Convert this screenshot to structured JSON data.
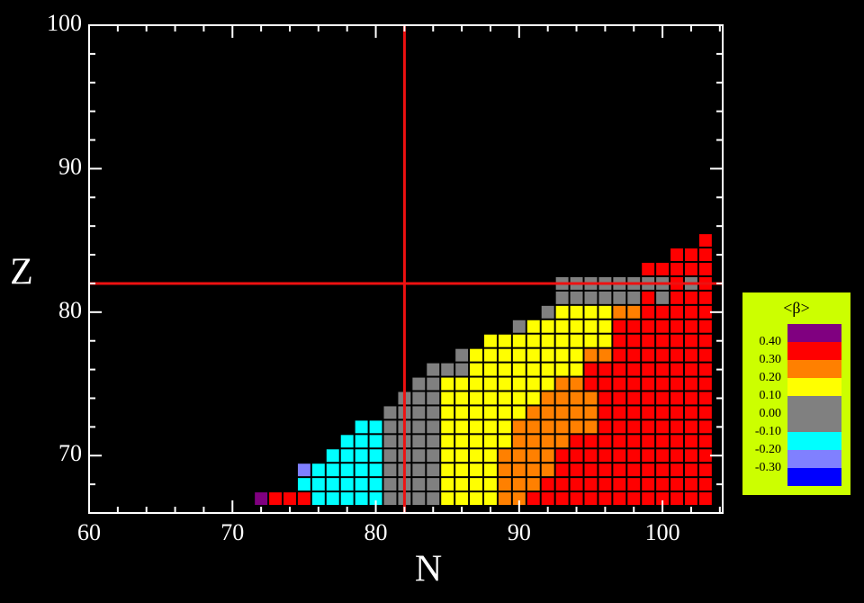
{
  "chart_data": {
    "type": "cellmap",
    "xlabel": "N",
    "ylabel": "Z",
    "xlim": [
      60,
      104.2
    ],
    "ylim": [
      66,
      100
    ],
    "xticks": [
      60,
      70,
      80,
      90,
      100
    ],
    "yticks": [
      70,
      80,
      90,
      100
    ],
    "xminorticks": [
      62,
      64,
      66,
      68,
      72,
      74,
      76,
      78,
      82,
      84,
      86,
      88,
      92,
      94,
      96,
      98,
      102,
      104
    ],
    "yminorticks": [
      66,
      68,
      72,
      74,
      76,
      78,
      82,
      84,
      86,
      88,
      92,
      94,
      96,
      98
    ],
    "reference_lines": [
      {
        "axis": "x",
        "value": 82,
        "color": "#ee1111"
      },
      {
        "axis": "y",
        "value": 82,
        "color": "#ee1111"
      }
    ],
    "legend": {
      "title": "<β>",
      "background": "#ccff00",
      "colors": [
        "#800080",
        "#ff0000",
        "#ff8000",
        "#ffff00",
        "#808080",
        "#00ffff",
        "#8080ff",
        "#0000ff"
      ],
      "labels": [
        {
          "value": 0.4,
          "label": "0.40"
        },
        {
          "value": 0.3,
          "label": "0.30"
        },
        {
          "value": 0.2,
          "label": "0.20"
        },
        {
          "value": 0.1,
          "label": "0.10"
        },
        {
          "value": 0,
          "label": "0.00"
        },
        {
          "value": -0.1,
          "label": "-0.10"
        },
        {
          "value": -0.2,
          "label": "-0.20"
        },
        {
          "value": -0.3,
          "label": "-0.30"
        }
      ]
    },
    "cells": [
      [
        72,
        67,
        0
      ],
      [
        73,
        67,
        1
      ],
      [
        74,
        67,
        1
      ],
      [
        75,
        67,
        1
      ],
      [
        76,
        67,
        5
      ],
      [
        77,
        67,
        5
      ],
      [
        78,
        67,
        5
      ],
      [
        79,
        67,
        5
      ],
      [
        80,
        67,
        5
      ],
      [
        81,
        67,
        4
      ],
      [
        82,
        67,
        4
      ],
      [
        83,
        67,
        4
      ],
      [
        84,
        67,
        4
      ],
      [
        85,
        67,
        3
      ],
      [
        86,
        67,
        3
      ],
      [
        87,
        67,
        3
      ],
      [
        88,
        67,
        3
      ],
      [
        89,
        67,
        2
      ],
      [
        90,
        67,
        2
      ],
      [
        91,
        67,
        1
      ],
      [
        92,
        67,
        1
      ],
      [
        93,
        67,
        1
      ],
      [
        94,
        67,
        1
      ],
      [
        95,
        67,
        1
      ],
      [
        96,
        67,
        1
      ],
      [
        97,
        67,
        1
      ],
      [
        98,
        67,
        1
      ],
      [
        99,
        67,
        1
      ],
      [
        100,
        67,
        1
      ],
      [
        101,
        67,
        1
      ],
      [
        102,
        67,
        1
      ],
      [
        103,
        67,
        1
      ],
      [
        75,
        68,
        5
      ],
      [
        76,
        68,
        5
      ],
      [
        77,
        68,
        5
      ],
      [
        78,
        68,
        5
      ],
      [
        79,
        68,
        5
      ],
      [
        80,
        68,
        5
      ],
      [
        81,
        68,
        4
      ],
      [
        82,
        68,
        4
      ],
      [
        83,
        68,
        4
      ],
      [
        84,
        68,
        4
      ],
      [
        85,
        68,
        3
      ],
      [
        86,
        68,
        3
      ],
      [
        87,
        68,
        3
      ],
      [
        88,
        68,
        3
      ],
      [
        89,
        68,
        2
      ],
      [
        90,
        68,
        2
      ],
      [
        91,
        68,
        2
      ],
      [
        92,
        68,
        1
      ],
      [
        93,
        68,
        1
      ],
      [
        94,
        68,
        1
      ],
      [
        95,
        68,
        1
      ],
      [
        96,
        68,
        1
      ],
      [
        97,
        68,
        1
      ],
      [
        98,
        68,
        1
      ],
      [
        99,
        68,
        1
      ],
      [
        100,
        68,
        1
      ],
      [
        101,
        68,
        1
      ],
      [
        102,
        68,
        1
      ],
      [
        103,
        68,
        1
      ],
      [
        75,
        69,
        6
      ],
      [
        76,
        69,
        5
      ],
      [
        77,
        69,
        5
      ],
      [
        78,
        69,
        5
      ],
      [
        79,
        69,
        5
      ],
      [
        80,
        69,
        5
      ],
      [
        81,
        69,
        4
      ],
      [
        82,
        69,
        4
      ],
      [
        83,
        69,
        4
      ],
      [
        84,
        69,
        4
      ],
      [
        85,
        69,
        3
      ],
      [
        86,
        69,
        3
      ],
      [
        87,
        69,
        3
      ],
      [
        88,
        69,
        3
      ],
      [
        89,
        69,
        2
      ],
      [
        90,
        69,
        2
      ],
      [
        91,
        69,
        2
      ],
      [
        92,
        69,
        2
      ],
      [
        93,
        69,
        1
      ],
      [
        94,
        69,
        1
      ],
      [
        95,
        69,
        1
      ],
      [
        96,
        69,
        1
      ],
      [
        97,
        69,
        1
      ],
      [
        98,
        69,
        1
      ],
      [
        99,
        69,
        1
      ],
      [
        100,
        69,
        1
      ],
      [
        101,
        69,
        1
      ],
      [
        102,
        69,
        1
      ],
      [
        103,
        69,
        1
      ],
      [
        77,
        70,
        5
      ],
      [
        78,
        70,
        5
      ],
      [
        79,
        70,
        5
      ],
      [
        80,
        70,
        5
      ],
      [
        81,
        70,
        4
      ],
      [
        82,
        70,
        4
      ],
      [
        83,
        70,
        4
      ],
      [
        84,
        70,
        4
      ],
      [
        85,
        70,
        3
      ],
      [
        86,
        70,
        3
      ],
      [
        87,
        70,
        3
      ],
      [
        88,
        70,
        3
      ],
      [
        89,
        70,
        2
      ],
      [
        90,
        70,
        2
      ],
      [
        91,
        70,
        2
      ],
      [
        92,
        70,
        2
      ],
      [
        93,
        70,
        1
      ],
      [
        94,
        70,
        1
      ],
      [
        95,
        70,
        1
      ],
      [
        96,
        70,
        1
      ],
      [
        97,
        70,
        1
      ],
      [
        98,
        70,
        1
      ],
      [
        99,
        70,
        1
      ],
      [
        100,
        70,
        1
      ],
      [
        101,
        70,
        1
      ],
      [
        102,
        70,
        1
      ],
      [
        103,
        70,
        1
      ],
      [
        78,
        71,
        5
      ],
      [
        79,
        71,
        5
      ],
      [
        80,
        71,
        5
      ],
      [
        81,
        71,
        4
      ],
      [
        82,
        71,
        4
      ],
      [
        83,
        71,
        4
      ],
      [
        84,
        71,
        4
      ],
      [
        85,
        71,
        3
      ],
      [
        86,
        71,
        3
      ],
      [
        87,
        71,
        3
      ],
      [
        88,
        71,
        3
      ],
      [
        89,
        71,
        3
      ],
      [
        90,
        71,
        2
      ],
      [
        91,
        71,
        2
      ],
      [
        92,
        71,
        2
      ],
      [
        93,
        71,
        2
      ],
      [
        94,
        71,
        1
      ],
      [
        95,
        71,
        1
      ],
      [
        96,
        71,
        1
      ],
      [
        97,
        71,
        1
      ],
      [
        98,
        71,
        1
      ],
      [
        99,
        71,
        1
      ],
      [
        100,
        71,
        1
      ],
      [
        101,
        71,
        1
      ],
      [
        102,
        71,
        1
      ],
      [
        103,
        71,
        1
      ],
      [
        79,
        72,
        5
      ],
      [
        80,
        72,
        5
      ],
      [
        81,
        72,
        4
      ],
      [
        82,
        72,
        4
      ],
      [
        83,
        72,
        4
      ],
      [
        84,
        72,
        4
      ],
      [
        85,
        72,
        3
      ],
      [
        86,
        72,
        3
      ],
      [
        87,
        72,
        3
      ],
      [
        88,
        72,
        3
      ],
      [
        89,
        72,
        3
      ],
      [
        90,
        72,
        2
      ],
      [
        91,
        72,
        2
      ],
      [
        92,
        72,
        2
      ],
      [
        93,
        72,
        2
      ],
      [
        94,
        72,
        2
      ],
      [
        95,
        72,
        2
      ],
      [
        96,
        72,
        1
      ],
      [
        97,
        72,
        1
      ],
      [
        98,
        72,
        1
      ],
      [
        99,
        72,
        1
      ],
      [
        100,
        72,
        1
      ],
      [
        101,
        72,
        1
      ],
      [
        102,
        72,
        1
      ],
      [
        103,
        72,
        1
      ],
      [
        81,
        73,
        4
      ],
      [
        82,
        73,
        4
      ],
      [
        83,
        73,
        4
      ],
      [
        84,
        73,
        4
      ],
      [
        85,
        73,
        3
      ],
      [
        86,
        73,
        3
      ],
      [
        87,
        73,
        3
      ],
      [
        88,
        73,
        3
      ],
      [
        89,
        73,
        3
      ],
      [
        90,
        73,
        3
      ],
      [
        91,
        73,
        2
      ],
      [
        92,
        73,
        2
      ],
      [
        93,
        73,
        2
      ],
      [
        94,
        73,
        2
      ],
      [
        95,
        73,
        2
      ],
      [
        96,
        73,
        1
      ],
      [
        97,
        73,
        1
      ],
      [
        98,
        73,
        1
      ],
      [
        99,
        73,
        1
      ],
      [
        100,
        73,
        1
      ],
      [
        101,
        73,
        1
      ],
      [
        102,
        73,
        1
      ],
      [
        103,
        73,
        1
      ],
      [
        82,
        74,
        4
      ],
      [
        83,
        74,
        4
      ],
      [
        84,
        74,
        4
      ],
      [
        85,
        74,
        3
      ],
      [
        86,
        74,
        3
      ],
      [
        87,
        74,
        3
      ],
      [
        88,
        74,
        3
      ],
      [
        89,
        74,
        3
      ],
      [
        90,
        74,
        3
      ],
      [
        91,
        74,
        3
      ],
      [
        92,
        74,
        2
      ],
      [
        93,
        74,
        2
      ],
      [
        94,
        74,
        2
      ],
      [
        95,
        74,
        2
      ],
      [
        96,
        74,
        1
      ],
      [
        97,
        74,
        1
      ],
      [
        98,
        74,
        1
      ],
      [
        99,
        74,
        1
      ],
      [
        100,
        74,
        1
      ],
      [
        101,
        74,
        1
      ],
      [
        102,
        74,
        1
      ],
      [
        103,
        74,
        1
      ],
      [
        83,
        75,
        4
      ],
      [
        84,
        75,
        4
      ],
      [
        85,
        75,
        3
      ],
      [
        86,
        75,
        3
      ],
      [
        87,
        75,
        3
      ],
      [
        88,
        75,
        3
      ],
      [
        89,
        75,
        3
      ],
      [
        90,
        75,
        3
      ],
      [
        91,
        75,
        3
      ],
      [
        92,
        75,
        3
      ],
      [
        93,
        75,
        2
      ],
      [
        94,
        75,
        2
      ],
      [
        95,
        75,
        1
      ],
      [
        96,
        75,
        1
      ],
      [
        97,
        75,
        1
      ],
      [
        98,
        75,
        1
      ],
      [
        99,
        75,
        1
      ],
      [
        100,
        75,
        1
      ],
      [
        101,
        75,
        1
      ],
      [
        102,
        75,
        1
      ],
      [
        103,
        75,
        1
      ],
      [
        84,
        76,
        4
      ],
      [
        85,
        76,
        4
      ],
      [
        86,
        76,
        4
      ],
      [
        87,
        76,
        3
      ],
      [
        88,
        76,
        3
      ],
      [
        89,
        76,
        3
      ],
      [
        90,
        76,
        3
      ],
      [
        91,
        76,
        3
      ],
      [
        92,
        76,
        3
      ],
      [
        93,
        76,
        3
      ],
      [
        94,
        76,
        3
      ],
      [
        95,
        76,
        1
      ],
      [
        96,
        76,
        1
      ],
      [
        97,
        76,
        1
      ],
      [
        98,
        76,
        1
      ],
      [
        99,
        76,
        1
      ],
      [
        100,
        76,
        1
      ],
      [
        101,
        76,
        1
      ],
      [
        102,
        76,
        1
      ],
      [
        103,
        76,
        1
      ],
      [
        86,
        77,
        4
      ],
      [
        87,
        77,
        3
      ],
      [
        88,
        77,
        3
      ],
      [
        89,
        77,
        3
      ],
      [
        90,
        77,
        3
      ],
      [
        91,
        77,
        3
      ],
      [
        92,
        77,
        3
      ],
      [
        93,
        77,
        3
      ],
      [
        94,
        77,
        3
      ],
      [
        95,
        77,
        2
      ],
      [
        96,
        77,
        2
      ],
      [
        97,
        77,
        1
      ],
      [
        98,
        77,
        1
      ],
      [
        99,
        77,
        1
      ],
      [
        100,
        77,
        1
      ],
      [
        101,
        77,
        1
      ],
      [
        102,
        77,
        1
      ],
      [
        103,
        77,
        1
      ],
      [
        88,
        78,
        3
      ],
      [
        89,
        78,
        3
      ],
      [
        90,
        78,
        3
      ],
      [
        91,
        78,
        3
      ],
      [
        92,
        78,
        3
      ],
      [
        93,
        78,
        3
      ],
      [
        94,
        78,
        3
      ],
      [
        95,
        78,
        3
      ],
      [
        96,
        78,
        3
      ],
      [
        97,
        78,
        1
      ],
      [
        98,
        78,
        1
      ],
      [
        99,
        78,
        1
      ],
      [
        100,
        78,
        1
      ],
      [
        101,
        78,
        1
      ],
      [
        102,
        78,
        1
      ],
      [
        103,
        78,
        1
      ],
      [
        90,
        79,
        4
      ],
      [
        91,
        79,
        3
      ],
      [
        92,
        79,
        3
      ],
      [
        93,
        79,
        3
      ],
      [
        94,
        79,
        3
      ],
      [
        95,
        79,
        3
      ],
      [
        96,
        79,
        3
      ],
      [
        97,
        79,
        1
      ],
      [
        98,
        79,
        1
      ],
      [
        99,
        79,
        1
      ],
      [
        100,
        79,
        1
      ],
      [
        101,
        79,
        1
      ],
      [
        102,
        79,
        1
      ],
      [
        103,
        79,
        1
      ],
      [
        92,
        80,
        4
      ],
      [
        93,
        80,
        3
      ],
      [
        94,
        80,
        3
      ],
      [
        95,
        80,
        3
      ],
      [
        96,
        80,
        3
      ],
      [
        97,
        80,
        2
      ],
      [
        98,
        80,
        2
      ],
      [
        99,
        80,
        1
      ],
      [
        100,
        80,
        1
      ],
      [
        101,
        80,
        1
      ],
      [
        102,
        80,
        1
      ],
      [
        103,
        80,
        1
      ],
      [
        93,
        81,
        4
      ],
      [
        94,
        81,
        4
      ],
      [
        95,
        81,
        4
      ],
      [
        96,
        81,
        4
      ],
      [
        97,
        81,
        4
      ],
      [
        98,
        81,
        4
      ],
      [
        99,
        81,
        1
      ],
      [
        100,
        81,
        4
      ],
      [
        101,
        81,
        1
      ],
      [
        102,
        81,
        1
      ],
      [
        103,
        81,
        1
      ],
      [
        93,
        82,
        4
      ],
      [
        94,
        82,
        4
      ],
      [
        95,
        82,
        4
      ],
      [
        96,
        82,
        4
      ],
      [
        97,
        82,
        4
      ],
      [
        98,
        82,
        4
      ],
      [
        99,
        82,
        4
      ],
      [
        100,
        82,
        4
      ],
      [
        101,
        82,
        1
      ],
      [
        102,
        82,
        4
      ],
      [
        103,
        82,
        1
      ],
      [
        99,
        83,
        1
      ],
      [
        100,
        83,
        1
      ],
      [
        101,
        83,
        1
      ],
      [
        102,
        83,
        1
      ],
      [
        103,
        83,
        1
      ],
      [
        101,
        84,
        1
      ],
      [
        102,
        84,
        1
      ],
      [
        103,
        84,
        1
      ],
      [
        103,
        85,
        1
      ]
    ]
  }
}
